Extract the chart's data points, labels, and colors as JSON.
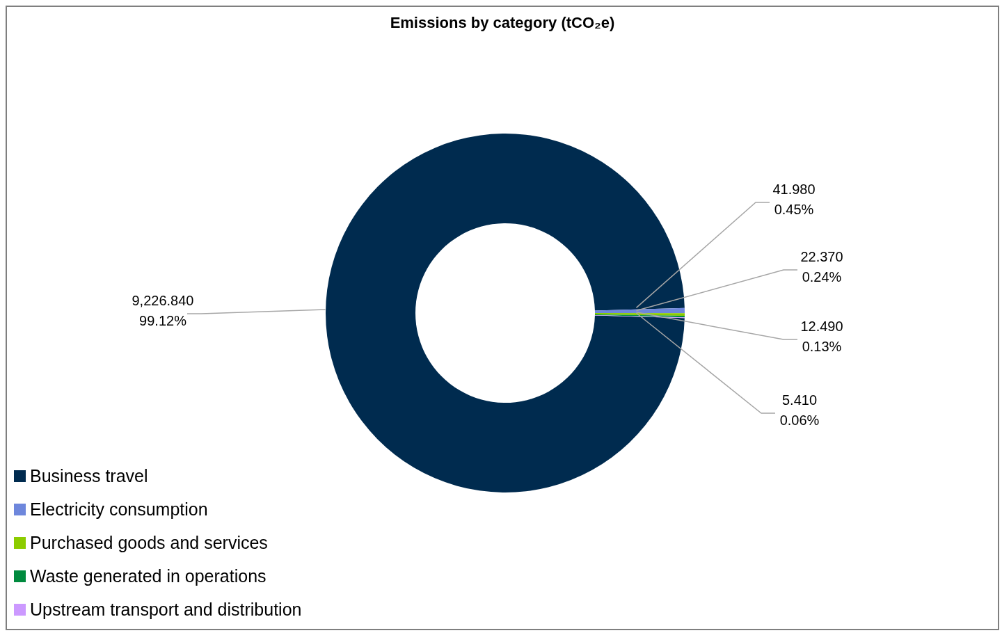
{
  "chart_data": {
    "type": "donut",
    "title": "Emissions by category (tCO₂e)",
    "categories": [
      "Business travel",
      "Electricity consumption",
      "Purchased goods and services",
      "Waste generated in operations",
      "Upstream transport and distribution"
    ],
    "values": [
      9226.84,
      41.98,
      22.37,
      12.49,
      5.41
    ],
    "colors": [
      "#002b4f",
      "#6e87dc",
      "#8ccc00",
      "#008a3e",
      "#cc99ff"
    ],
    "value_labels": [
      "9,226.840\n99.12%",
      "41.980\n0.45%",
      "22.370\n0.24%",
      "12.490\n0.13%",
      "5.410\n0.06%"
    ],
    "legend": "bottom left"
  }
}
